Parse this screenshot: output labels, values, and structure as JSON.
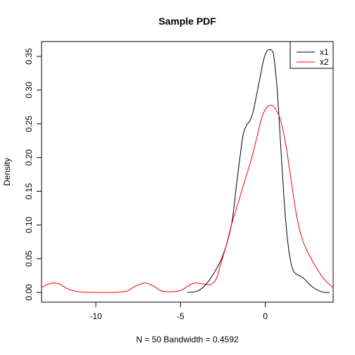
{
  "chart_data": {
    "type": "line",
    "title": "Sample PDF",
    "xlabel": "N = 50   Bandwidth = 0.4592",
    "ylabel": "Density",
    "xlim": [
      -13.2,
      4.0
    ],
    "ylim": [
      -0.0145,
      0.372
    ],
    "x_ticks": [
      -10,
      -5,
      0
    ],
    "x_tick_labels": [
      "-10",
      "-5",
      "0"
    ],
    "y_ticks": [
      0.0,
      0.05,
      0.1,
      0.15,
      0.2,
      0.25,
      0.3,
      0.35
    ],
    "y_tick_labels": [
      "0.00",
      "0.05",
      "0.10",
      "0.15",
      "0.20",
      "0.25",
      "0.30",
      "0.35"
    ],
    "grid": false,
    "legend": {
      "position": "top-right"
    },
    "series": [
      {
        "name": "x1",
        "color": "#000000",
        "x": [
          -4.6,
          -4.0,
          -3.5,
          -3.0,
          -2.5,
          -2.0,
          -1.7,
          -1.5,
          -1.3,
          -1.1,
          -0.9,
          -0.7,
          -0.5,
          -0.3,
          -0.1,
          0.1,
          0.3,
          0.4,
          0.5,
          0.7,
          0.9,
          1.1,
          1.3,
          1.5,
          1.7,
          2.0,
          2.3,
          2.6,
          2.9,
          3.2,
          3.5,
          3.8
        ],
        "y": [
          0.0,
          0.002,
          0.012,
          0.03,
          0.055,
          0.1,
          0.16,
          0.2,
          0.235,
          0.248,
          0.255,
          0.27,
          0.295,
          0.32,
          0.345,
          0.358,
          0.36,
          0.358,
          0.35,
          0.3,
          0.22,
          0.14,
          0.08,
          0.045,
          0.03,
          0.025,
          0.02,
          0.012,
          0.006,
          0.002,
          0.0,
          0.0
        ]
      },
      {
        "name": "x2",
        "color": "#ff0000",
        "x": [
          -13.2,
          -13.0,
          -12.7,
          -12.4,
          -12.1,
          -11.8,
          -11.4,
          -11.0,
          -10.5,
          -10.0,
          -9.0,
          -8.3,
          -8.0,
          -7.7,
          -7.4,
          -7.1,
          -6.8,
          -6.5,
          -6.2,
          -5.8,
          -5.4,
          -5.0,
          -4.7,
          -4.4,
          -4.1,
          -3.8,
          -3.5,
          -3.2,
          -2.9,
          -2.6,
          -2.3,
          -2.0,
          -1.7,
          -1.4,
          -1.1,
          -0.8,
          -0.5,
          -0.2,
          0.1,
          0.4,
          0.6,
          0.9,
          1.2,
          1.5,
          1.8,
          2.1,
          2.4,
          2.7,
          3.0,
          3.3,
          3.6,
          4.0
        ],
        "y": [
          0.007,
          0.01,
          0.013,
          0.014,
          0.012,
          0.007,
          0.003,
          0.001,
          0.0,
          0.0,
          0.0,
          0.001,
          0.004,
          0.009,
          0.012,
          0.014,
          0.012,
          0.008,
          0.003,
          0.001,
          0.001,
          0.003,
          0.007,
          0.012,
          0.014,
          0.013,
          0.012,
          0.012,
          0.02,
          0.045,
          0.07,
          0.1,
          0.125,
          0.15,
          0.175,
          0.2,
          0.23,
          0.26,
          0.275,
          0.277,
          0.272,
          0.255,
          0.22,
          0.17,
          0.12,
          0.085,
          0.065,
          0.05,
          0.037,
          0.025,
          0.016,
          0.007
        ]
      }
    ]
  }
}
